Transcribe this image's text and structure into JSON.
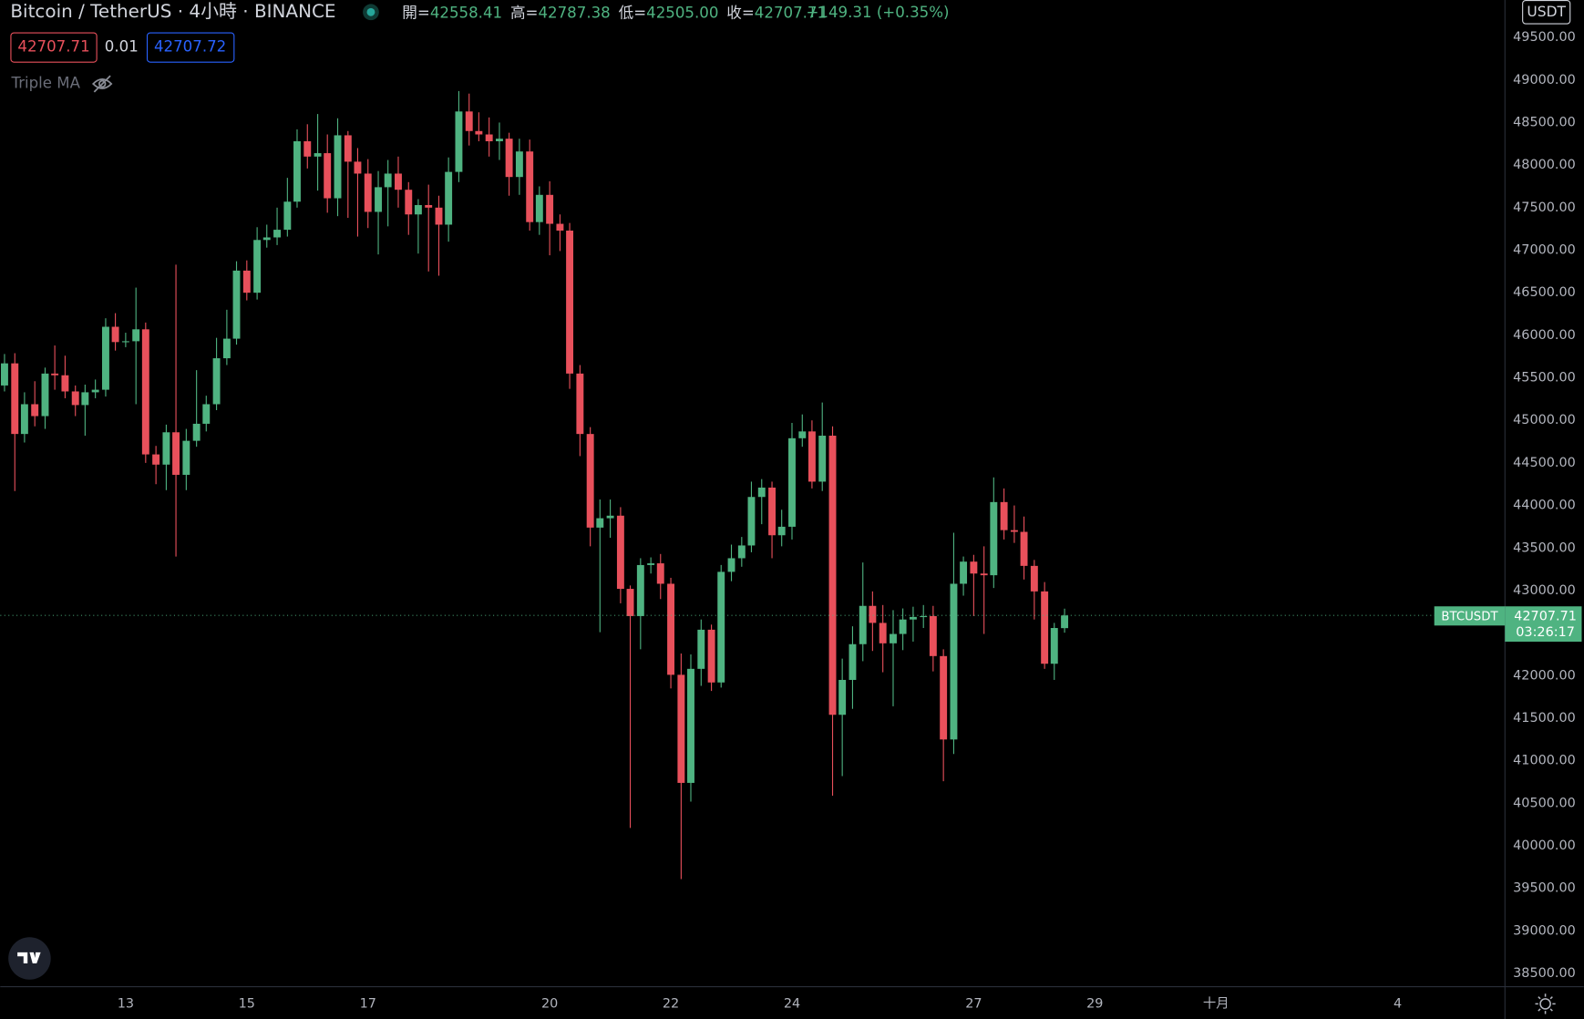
{
  "header": {
    "title": "Bitcoin / TetherUS · 4小時 · BINANCE",
    "ohlc": [
      {
        "key": "開=",
        "text": "42558.41"
      },
      {
        "key": "高=",
        "text": "42787.38"
      },
      {
        "key": "低=",
        "text": "42505.00"
      },
      {
        "key": "收=",
        "text": "42707.71"
      }
    ],
    "change": "+149.31 (+0.35%)",
    "sell": "42707.71",
    "spread": "0.01",
    "buy": "42707.72",
    "indicator": "Triple MA"
  },
  "chart_data": {
    "type": "candlestick",
    "up_color": "#4fb381",
    "down_color": "#e8505b",
    "currency": "USDT",
    "x": [
      11,
      11.17,
      11.33,
      11.5,
      11.67,
      11.83,
      12,
      12.17,
      12.33,
      12.5,
      12.67,
      12.83,
      13,
      13.17,
      13.33,
      13.5,
      13.67,
      13.83,
      14,
      14.17,
      14.33,
      14.5,
      14.67,
      14.83,
      15,
      15.17,
      15.33,
      15.5,
      15.67,
      15.83,
      16,
      16.17,
      16.33,
      16.5,
      16.67,
      16.83,
      17,
      17.17,
      17.33,
      17.5,
      17.67,
      17.83,
      18,
      18.17,
      18.33,
      18.5,
      18.67,
      18.83,
      19,
      19.17,
      19.33,
      19.5,
      19.67,
      19.83,
      20,
      20.17,
      20.33,
      20.5,
      20.67,
      20.83,
      21,
      21.17,
      21.33,
      21.5,
      21.67,
      21.83,
      22,
      22.17,
      22.33,
      22.5,
      22.67,
      22.83,
      23,
      23.17,
      23.33,
      23.5,
      23.67,
      23.83,
      24,
      24.17,
      24.33,
      24.5,
      24.67,
      24.83,
      25,
      25.17,
      25.33,
      25.5,
      25.67,
      25.83,
      26,
      26.17,
      26.33,
      26.5,
      26.67,
      26.83,
      27,
      27.17,
      27.33,
      27.5,
      27.67,
      27.83,
      28,
      28.17,
      28.33,
      28.5
    ],
    "open": [
      45410,
      45670,
      44840,
      45190,
      45050,
      45550,
      45530,
      45340,
      45180,
      45330,
      45360,
      46100,
      45920,
      45930,
      46070,
      44600,
      44480,
      44860,
      44360,
      44760,
      44960,
      45190,
      45730,
      45960,
      46760,
      46500,
      47120,
      47150,
      47240,
      47570,
      48280,
      48100,
      48140,
      47610,
      48350,
      48040,
      47900,
      47450,
      47740,
      47900,
      47710,
      47420,
      47530,
      47500,
      47300,
      47920,
      48630,
      48400,
      48360,
      48280,
      48310,
      47860,
      48160,
      47330,
      47650,
      47310,
      47230,
      45550,
      44840,
      43740,
      43850,
      43880,
      43020,
      42700,
      43300,
      43320,
      43080,
      42010,
      40740,
      42080,
      42540,
      41920,
      43220,
      43380,
      43530,
      44100,
      44210,
      43650,
      43750,
      44790,
      44870,
      44280,
      44820,
      41540,
      41950,
      42370,
      42820,
      42620,
      42380,
      42490,
      42660,
      42690,
      42700,
      42230,
      41250,
      43080,
      43340,
      43200,
      43180,
      44040,
      43710,
      43690,
      43290,
      42990,
      42140,
      42558.41
    ],
    "high": [
      45780,
      45790,
      45330,
      45460,
      45620,
      45880,
      45760,
      45410,
      45420,
      45480,
      46200,
      46260,
      46030,
      46560,
      46150,
      44700,
      44950,
      46830,
      44900,
      45590,
      45290,
      45970,
      46300,
      46870,
      46880,
      47270,
      47300,
      47500,
      47850,
      48420,
      48480,
      48600,
      48360,
      48550,
      48400,
      48200,
      48070,
      47930,
      48060,
      48100,
      47800,
      47600,
      47770,
      47640,
      48090,
      48870,
      48840,
      48620,
      48560,
      48500,
      48380,
      48310,
      48300,
      47750,
      47810,
      47420,
      47320,
      45650,
      44920,
      44070,
      44070,
      43980,
      43060,
      43380,
      43390,
      43430,
      43150,
      42260,
      42250,
      42660,
      42600,
      43300,
      43540,
      43630,
      44280,
      44310,
      44280,
      43950,
      44970,
      45070,
      45000,
      45210,
      44930,
      42200,
      42580,
      43330,
      42990,
      42830,
      42770,
      42790,
      42810,
      42830,
      42820,
      42310,
      43680,
      43400,
      43420,
      43520,
      44330,
      44200,
      44000,
      43870,
      43360,
      43100,
      42620,
      42787.38
    ],
    "low": [
      45340,
      44170,
      44740,
      44930,
      44900,
      45360,
      45260,
      45050,
      44820,
      45260,
      45280,
      45820,
      45860,
      45190,
      44500,
      44250,
      44180,
      43400,
      44180,
      44690,
      44870,
      45120,
      45650,
      45890,
      46410,
      46420,
      47030,
      47060,
      47160,
      47500,
      47960,
      47700,
      47440,
      47400,
      47380,
      47160,
      47260,
      46950,
      47280,
      47500,
      47180,
      46960,
      46750,
      46700,
      47100,
      47800,
      48230,
      48280,
      48100,
      48060,
      47640,
      47650,
      47230,
      47180,
      46940,
      46990,
      45370,
      44580,
      43520,
      42510,
      43620,
      42850,
      40210,
      42310,
      43200,
      42900,
      41850,
      39610,
      40520,
      41880,
      41820,
      41860,
      43110,
      43280,
      43450,
      43780,
      43380,
      43520,
      43600,
      44690,
      44200,
      44170,
      40590,
      40820,
      41610,
      42170,
      42290,
      42040,
      41640,
      42300,
      42400,
      42560,
      42050,
      40760,
      41080,
      42940,
      42700,
      42490,
      43030,
      43600,
      43560,
      43130,
      42660,
      42080,
      41950,
      42505
    ],
    "close": [
      45670,
      44840,
      45190,
      45050,
      45550,
      45530,
      45340,
      45180,
      45330,
      45360,
      46100,
      45920,
      45930,
      46070,
      44600,
      44480,
      44860,
      44360,
      44760,
      44960,
      45190,
      45730,
      45960,
      46760,
      46500,
      47120,
      47150,
      47240,
      47570,
      48280,
      48100,
      48140,
      47610,
      48350,
      48040,
      47900,
      47450,
      47740,
      47900,
      47710,
      47420,
      47530,
      47500,
      47300,
      47920,
      48630,
      48400,
      48360,
      48280,
      48310,
      47860,
      48160,
      47330,
      47650,
      47310,
      47230,
      45550,
      44840,
      43740,
      43850,
      43880,
      43020,
      42700,
      43300,
      43320,
      43080,
      42010,
      40740,
      42080,
      42540,
      41920,
      43220,
      43380,
      43530,
      44100,
      44210,
      43650,
      43750,
      44790,
      44870,
      44280,
      44820,
      41540,
      41950,
      42370,
      42820,
      42620,
      42380,
      42490,
      42660,
      42690,
      42700,
      42230,
      41250,
      43080,
      43340,
      43200,
      43180,
      44040,
      43710,
      43690,
      43290,
      42990,
      42140,
      42560,
      42707.71
    ],
    "xlim": [
      10.93,
      35.77
    ],
    "xticks": [
      13,
      15,
      17,
      20,
      22,
      24,
      27,
      29,
      {
        "value": 31,
        "label": "十月"
      },
      {
        "value": 34,
        "label": "4"
      }
    ],
    "ylim": [
      38345,
      49940
    ],
    "yticks": [
      {
        "value": 38500,
        "label": "38500.00"
      },
      {
        "value": 39000,
        "label": "39000.00"
      },
      {
        "value": 39500,
        "label": "39500.00"
      },
      {
        "value": 40000,
        "label": "40000.00"
      },
      {
        "value": 40500,
        "label": "40500.00"
      },
      {
        "value": 41000,
        "label": "41000.00"
      },
      {
        "value": 41500,
        "label": "41500.00"
      },
      {
        "value": 42000,
        "label": "42000.00"
      },
      {
        "value": 42500,
        "label": "42500.00"
      },
      {
        "value": 43000,
        "label": "43000.00"
      },
      {
        "value": 43500,
        "label": "43500.00"
      },
      {
        "value": 44000,
        "label": "44000.00"
      },
      {
        "value": 44500,
        "label": "44500.00"
      },
      {
        "value": 45000,
        "label": "45000.00"
      },
      {
        "value": 45500,
        "label": "45500.00"
      },
      {
        "value": 46000,
        "label": "46000.00"
      },
      {
        "value": 46500,
        "label": "46500.00"
      },
      {
        "value": 47000,
        "label": "47000.00"
      },
      {
        "value": 47500,
        "label": "47500.00"
      },
      {
        "value": 48000,
        "label": "48000.00"
      },
      {
        "value": 48500,
        "label": "48500.00"
      },
      {
        "value": 49000,
        "label": "49000.00"
      },
      {
        "value": 49500,
        "label": "49500.00"
      }
    ],
    "grid": false,
    "last_price": {
      "value": 42707.71,
      "label": "42707.71"
    },
    "symbol_tag": "BTCUSDT",
    "countdown": "03:26:17"
  }
}
